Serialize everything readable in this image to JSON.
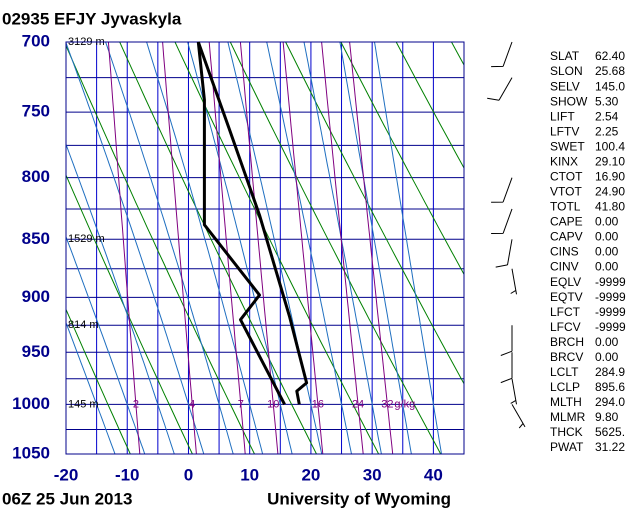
{
  "chart_data": {
    "type": "skewt",
    "title": "02935 EFJY Jyvaskyla",
    "subtitle": "06Z 25 Jun 2013",
    "source": "University of Wyoming",
    "log_y": true,
    "xlim": [
      -20,
      45
    ],
    "xticks": [
      -20,
      -10,
      0,
      10,
      20,
      30,
      40
    ],
    "xgrid": [
      -15,
      -5,
      5,
      15,
      25,
      35,
      45
    ],
    "ylim": [
      1050,
      700
    ],
    "yticks": [
      700,
      750,
      800,
      850,
      900,
      950,
      1000,
      1050
    ],
    "ygrid": [
      725,
      775,
      825,
      875,
      925,
      975,
      1025
    ],
    "dry_adiabats": [
      260,
      270,
      280,
      290,
      300,
      310,
      320,
      330,
      340,
      350
    ],
    "moist_adiabats": [
      -15,
      -10,
      -5,
      0,
      5,
      10,
      15,
      20,
      25,
      30,
      35,
      40
    ],
    "mixing_ratios": [
      2,
      4,
      7,
      10,
      16,
      24,
      32
    ],
    "mixing_ratio_unit": "g/kg",
    "height_labels": {
      "y": [
        700,
        850,
        925,
        1000
      ],
      "labels": [
        "3129 m",
        "1529 m",
        "814 m",
        "145 m"
      ]
    },
    "series": [
      {
        "color": "#000000",
        "y": [
          1000,
          987,
          979,
          917,
          830,
          763,
          700
        ],
        "x": [
          18.1,
          17.7,
          19.3,
          16.5,
          11.6,
          6.7,
          1.6
        ]
      },
      {
        "color": "#000000",
        "y": [
          1000,
          920,
          898,
          838,
          741,
          700
        ],
        "x": [
          15.7,
          8.5,
          11.6,
          2.6,
          2.6,
          1.6
        ]
      }
    ],
    "winds": {
      "y": [
        700,
        725,
        800,
        825,
        850,
        875,
        925,
        950,
        975,
        1000
      ],
      "direction": [
        200,
        210,
        200,
        200,
        190,
        170,
        180,
        180,
        170,
        150
      ],
      "speed": [
        10,
        10,
        10,
        10,
        10,
        5,
        10,
        10,
        5,
        5
      ]
    }
  },
  "indices": {
    "labels": [
      "SLAT",
      "SLON",
      "SELV",
      "SHOW",
      "LIFT",
      "LFTV",
      "SWET",
      "KINX",
      "CTOT",
      "VTOT",
      "TOTL",
      "CAPE",
      "CAPV",
      "CINS",
      "CINV",
      "EQLV",
      "EQTV",
      "LFCT",
      "LFCV",
      "BRCH",
      "BRCV",
      "LCLT",
      "LCLP",
      "MLTH",
      "MLMR",
      "THCK",
      "PWAT"
    ],
    "values": [
      "62.40",
      "25.68",
      "145.0",
      "5.30",
      "2.54",
      "2.25",
      "100.4",
      "29.10",
      "16.90",
      "24.90",
      "41.80",
      "0.00",
      "0.00",
      "0.00",
      "0.00",
      "-9999",
      "-9999",
      "-9999",
      "-9999",
      "0.00",
      "0.00",
      "284.9",
      "895.6",
      "294.0",
      "9.80",
      "5625.",
      "31.22"
    ]
  }
}
